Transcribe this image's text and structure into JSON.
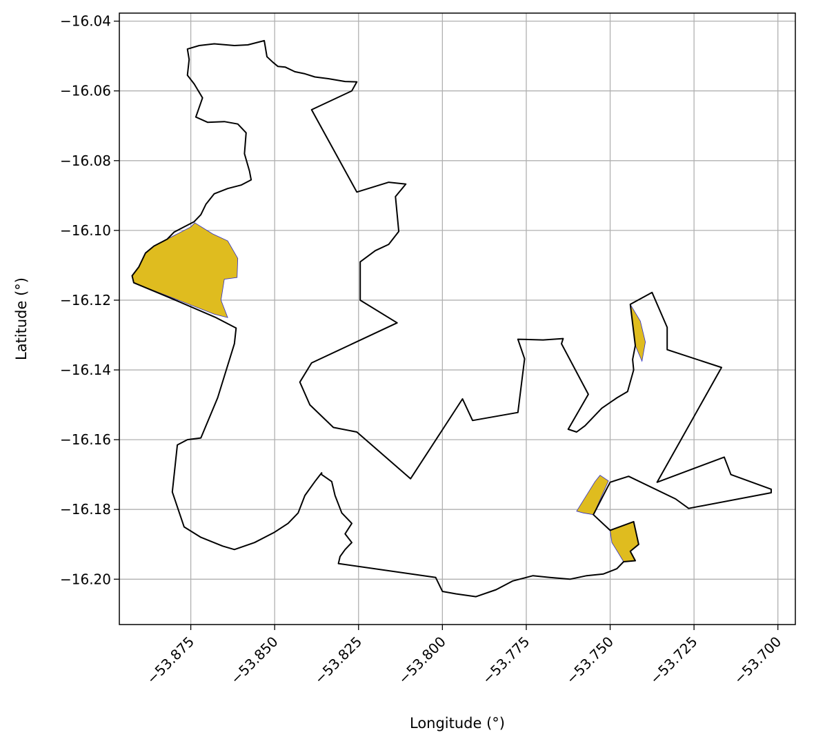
{
  "chart_data": {
    "type": "map",
    "xlabel": "Longitude (°)",
    "ylabel": "Latitude (°)",
    "xlim": [
      -53.8963,
      -53.6948
    ],
    "ylim": [
      -16.213,
      -16.0377
    ],
    "grid": true,
    "x_ticks": [
      {
        "value": -53.875,
        "label": "−53.875"
      },
      {
        "value": -53.85,
        "label": "−53.850"
      },
      {
        "value": -53.825,
        "label": "−53.825"
      },
      {
        "value": -53.8,
        "label": "−53.800"
      },
      {
        "value": -53.775,
        "label": "−53.775"
      },
      {
        "value": -53.75,
        "label": "−53.750"
      },
      {
        "value": -53.725,
        "label": "−53.725"
      },
      {
        "value": -53.7,
        "label": "−53.700"
      }
    ],
    "y_ticks": [
      {
        "value": -16.04,
        "label": "−16.04"
      },
      {
        "value": -16.06,
        "label": "−16.06"
      },
      {
        "value": -16.08,
        "label": "−16.08"
      },
      {
        "value": -16.1,
        "label": "−16.10"
      },
      {
        "value": -16.12,
        "label": "−16.12"
      },
      {
        "value": -16.14,
        "label": "−16.14"
      },
      {
        "value": -16.16,
        "label": "−16.16"
      },
      {
        "value": -16.18,
        "label": "−16.18"
      },
      {
        "value": -16.2,
        "label": "−16.20"
      }
    ],
    "colors": {
      "boundary": "#000000",
      "highlight_fill": "#dfbc1f",
      "highlight_edge": "#2b2bc8",
      "grid": "#b0b0b0"
    },
    "boundary": [
      [
        -53.8531,
        -16.0456
      ],
      [
        -53.8523,
        -16.0502
      ],
      [
        -53.8505,
        -16.0518
      ],
      [
        -53.849,
        -16.053
      ],
      [
        -53.8468,
        -16.0532
      ],
      [
        -53.844,
        -16.0545
      ],
      [
        -53.841,
        -16.0551
      ],
      [
        -53.838,
        -16.056
      ],
      [
        -53.834,
        -16.0565
      ],
      [
        -53.829,
        -16.0573
      ],
      [
        -53.8255,
        -16.0574
      ],
      [
        -53.827,
        -16.06
      ],
      [
        -53.839,
        -16.0654
      ],
      [
        -53.8255,
        -16.089
      ],
      [
        -53.816,
        -16.0862
      ],
      [
        -53.8109,
        -16.0867
      ],
      [
        -53.814,
        -16.0903
      ],
      [
        -53.813,
        -16.1003
      ],
      [
        -53.816,
        -16.104
      ],
      [
        -53.82,
        -16.1058
      ],
      [
        -53.8245,
        -16.109
      ],
      [
        -53.8245,
        -16.12
      ],
      [
        -53.8135,
        -16.1265
      ],
      [
        -53.839,
        -16.138
      ],
      [
        -53.8425,
        -16.1435
      ],
      [
        -53.8395,
        -16.15
      ],
      [
        -53.8325,
        -16.1565
      ],
      [
        -53.8255,
        -16.1578
      ],
      [
        -53.8095,
        -16.1712
      ],
      [
        -53.794,
        -16.1483
      ],
      [
        -53.791,
        -16.1545
      ],
      [
        -53.7775,
        -16.1522
      ],
      [
        -53.7755,
        -16.1368
      ],
      [
        -53.7775,
        -16.1312
      ],
      [
        -53.77,
        -16.1314
      ],
      [
        -53.764,
        -16.131
      ],
      [
        -53.7645,
        -16.1325
      ],
      [
        -53.7565,
        -16.147
      ],
      [
        -53.7625,
        -16.157
      ],
      [
        -53.76,
        -16.1578
      ],
      [
        -53.7575,
        -16.156
      ],
      [
        -53.7525,
        -16.151
      ],
      [
        -53.748,
        -16.148
      ],
      [
        -53.7448,
        -16.1462
      ],
      [
        -53.743,
        -16.14
      ],
      [
        -53.7433,
        -16.137
      ],
      [
        -53.7425,
        -16.133
      ],
      [
        -53.744,
        -16.1212
      ],
      [
        -53.7375,
        -16.1178
      ],
      [
        -53.733,
        -16.1278
      ],
      [
        -53.733,
        -16.1342
      ],
      [
        -53.7168,
        -16.1393
      ],
      [
        -53.736,
        -16.1722
      ],
      [
        -53.716,
        -16.165
      ],
      [
        -53.714,
        -16.17
      ],
      [
        -53.702,
        -16.1742
      ],
      [
        -53.702,
        -16.1752
      ],
      [
        -53.7266,
        -16.1797
      ],
      [
        -53.7305,
        -16.177
      ],
      [
        -53.7445,
        -16.1705
      ],
      [
        -53.75,
        -16.1722
      ],
      [
        -53.755,
        -16.1815
      ],
      [
        -53.75,
        -16.186
      ],
      [
        -53.743,
        -16.1835
      ],
      [
        -53.7415,
        -16.19
      ],
      [
        -53.744,
        -16.192
      ],
      [
        -53.7425,
        -16.1947
      ],
      [
        -53.746,
        -16.195
      ],
      [
        -53.748,
        -16.197
      ],
      [
        -53.752,
        -16.1985
      ],
      [
        -53.757,
        -16.199
      ],
      [
        -53.762,
        -16.2
      ],
      [
        -53.768,
        -16.1995
      ],
      [
        -53.773,
        -16.199
      ],
      [
        -53.779,
        -16.2005
      ],
      [
        -53.784,
        -16.203
      ],
      [
        -53.79,
        -16.205
      ],
      [
        -53.796,
        -16.2042
      ],
      [
        -53.8,
        -16.2035
      ],
      [
        -53.802,
        -16.1995
      ],
      [
        -53.831,
        -16.1955
      ],
      [
        -53.8305,
        -16.1935
      ],
      [
        -53.829,
        -16.1915
      ],
      [
        -53.827,
        -16.1895
      ],
      [
        -53.829,
        -16.187
      ],
      [
        -53.827,
        -16.184
      ],
      [
        -53.83,
        -16.181
      ],
      [
        -53.832,
        -16.176
      ],
      [
        -53.833,
        -16.172
      ],
      [
        -53.836,
        -16.17
      ],
      [
        -53.836,
        -16.1695
      ],
      [
        -53.838,
        -16.172
      ],
      [
        -53.841,
        -16.176
      ],
      [
        -53.843,
        -16.181
      ],
      [
        -53.846,
        -16.184
      ],
      [
        -53.85,
        -16.1865
      ],
      [
        -53.856,
        -16.1895
      ],
      [
        -53.862,
        -16.1915
      ],
      [
        -53.8655,
        -16.1905
      ],
      [
        -53.872,
        -16.188
      ],
      [
        -53.877,
        -16.185
      ],
      [
        -53.8805,
        -16.175
      ],
      [
        -53.879,
        -16.1615
      ],
      [
        -53.876,
        -16.16
      ],
      [
        -53.872,
        -16.1595
      ],
      [
        -53.867,
        -16.148
      ],
      [
        -53.862,
        -16.1325
      ],
      [
        -53.8615,
        -16.128
      ],
      [
        -53.8675,
        -16.125
      ],
      [
        -53.882,
        -16.119
      ],
      [
        -53.892,
        -16.115
      ],
      [
        -53.8925,
        -16.113
      ],
      [
        -53.8905,
        -16.1105
      ],
      [
        -53.8885,
        -16.1065
      ],
      [
        -53.886,
        -16.1045
      ],
      [
        -53.882,
        -16.1025
      ],
      [
        -53.88,
        -16.1005
      ],
      [
        -53.877,
        -16.099
      ],
      [
        -53.874,
        -16.0975
      ],
      [
        -53.872,
        -16.0955
      ],
      [
        -53.8705,
        -16.0925
      ],
      [
        -53.868,
        -16.0895
      ],
      [
        -53.864,
        -16.088
      ],
      [
        -53.86,
        -16.087
      ],
      [
        -53.857,
        -16.0855
      ],
      [
        -53.8575,
        -16.083
      ],
      [
        -53.859,
        -16.078
      ],
      [
        -53.8585,
        -16.072
      ],
      [
        -53.861,
        -16.0695
      ],
      [
        -53.865,
        -16.0688
      ],
      [
        -53.87,
        -16.069
      ],
      [
        -53.8735,
        -16.0675
      ],
      [
        -53.8715,
        -16.062
      ],
      [
        -53.874,
        -16.058
      ],
      [
        -53.876,
        -16.0555
      ],
      [
        -53.8755,
        -16.051
      ],
      [
        -53.876,
        -16.048
      ],
      [
        -53.8725,
        -16.047
      ],
      [
        -53.868,
        -16.0465
      ],
      [
        -53.862,
        -16.047
      ],
      [
        -53.858,
        -16.0468
      ],
      [
        -53.8531,
        -16.0456
      ]
    ],
    "highlight_areas": [
      [
        [
          -53.8738,
          -16.0978
        ],
        [
          -53.8685,
          -16.101
        ],
        [
          -53.864,
          -16.103
        ],
        [
          -53.861,
          -16.108
        ],
        [
          -53.8612,
          -16.1135
        ],
        [
          -53.865,
          -16.114
        ],
        [
          -53.866,
          -16.12
        ],
        [
          -53.864,
          -16.125
        ],
        [
          -53.868,
          -16.124
        ],
        [
          -53.892,
          -16.115
        ],
        [
          -53.8925,
          -16.113
        ],
        [
          -53.8905,
          -16.1105
        ],
        [
          -53.8885,
          -16.1065
        ],
        [
          -53.886,
          -16.1045
        ],
        [
          -53.882,
          -16.1025
        ],
        [
          -53.875,
          -16.099
        ],
        [
          -53.8738,
          -16.0978
        ]
      ],
      [
        [
          -53.744,
          -16.1212
        ],
        [
          -53.741,
          -16.126
        ],
        [
          -53.7395,
          -16.132
        ],
        [
          -53.7405,
          -16.1375
        ],
        [
          -53.7425,
          -16.133
        ],
        [
          -53.744,
          -16.1212
        ]
      ],
      [
        [
          -53.7505,
          -16.1718
        ],
        [
          -53.753,
          -16.1702
        ],
        [
          -53.7545,
          -16.172
        ],
        [
          -53.76,
          -16.1805
        ],
        [
          -53.758,
          -16.181
        ],
        [
          -53.755,
          -16.1815
        ],
        [
          -53.7505,
          -16.1718
        ]
      ],
      [
        [
          -53.75,
          -16.186
        ],
        [
          -53.743,
          -16.1835
        ],
        [
          -53.7415,
          -16.19
        ],
        [
          -53.744,
          -16.192
        ],
        [
          -53.7425,
          -16.1947
        ],
        [
          -53.746,
          -16.195
        ],
        [
          -53.748,
          -16.1918
        ],
        [
          -53.7495,
          -16.1895
        ],
        [
          -53.75,
          -16.186
        ]
      ]
    ]
  }
}
